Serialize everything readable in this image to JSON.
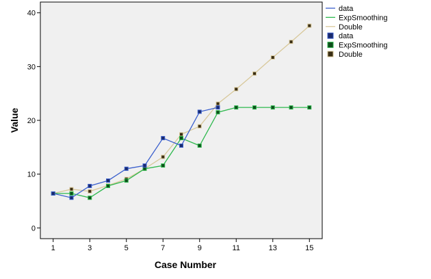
{
  "chart_data": {
    "type": "line",
    "xlabel": "Case Number",
    "ylabel": "Value",
    "xlim": [
      0.3,
      15.7
    ],
    "ylim": [
      -2,
      42
    ],
    "x_ticks": [
      1,
      3,
      5,
      7,
      9,
      11,
      13,
      15
    ],
    "y_ticks": [
      0,
      10,
      20,
      30,
      40
    ],
    "grid": false,
    "legend_position": "right",
    "series": [
      {
        "name": "data",
        "color": "#3a5fcd",
        "marker_fill": "#1a2a6c",
        "x": [
          1,
          2,
          3,
          4,
          5,
          6,
          7,
          8,
          9,
          10
        ],
        "values": [
          6.4,
          5.6,
          7.8,
          8.8,
          11.0,
          11.6,
          16.7,
          15.3,
          21.6,
          22.4
        ]
      },
      {
        "name": "ExpSmoothing",
        "color": "#2db84d",
        "marker_fill": "#0f4d1c",
        "x": [
          1,
          2,
          3,
          4,
          5,
          6,
          7,
          8,
          9,
          10,
          11,
          12,
          13,
          14,
          15
        ],
        "values": [
          6.4,
          6.4,
          5.6,
          7.8,
          8.8,
          11.0,
          11.6,
          16.7,
          15.3,
          21.5,
          22.4,
          22.4,
          22.4,
          22.4,
          22.4
        ]
      },
      {
        "name": "Double",
        "color": "#d8c89a",
        "marker_fill": "#3a2e14",
        "x": [
          1,
          2,
          3,
          4,
          5,
          6,
          7,
          8,
          9,
          10,
          11,
          12,
          13,
          14,
          15
        ],
        "values": [
          6.4,
          7.2,
          6.8,
          7.9,
          9.1,
          11.0,
          13.2,
          17.4,
          18.9,
          23.1,
          25.8,
          28.7,
          31.7,
          34.6,
          37.6
        ]
      }
    ],
    "legend": [
      {
        "kind": "line",
        "label": "data",
        "series": 0
      },
      {
        "kind": "line",
        "label": "ExpSmoothing",
        "series": 1
      },
      {
        "kind": "line",
        "label": "Double",
        "series": 2
      },
      {
        "kind": "marker",
        "label": "data",
        "series": 0
      },
      {
        "kind": "marker",
        "label": "ExpSmoothing",
        "series": 1
      },
      {
        "kind": "marker",
        "label": "Double",
        "series": 2
      }
    ]
  }
}
